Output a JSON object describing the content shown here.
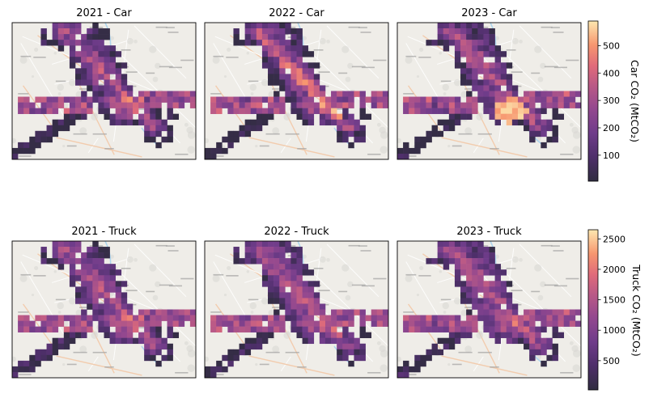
{
  "chart_data": {
    "type": "heatmap",
    "grid": {
      "rows": 1,
      "cols": 3
    },
    "panels": [
      {
        "title": "2021 - Car",
        "mode": "car",
        "year": 2021,
        "variant": 0
      },
      {
        "title": "2022 - Car",
        "mode": "car",
        "year": 2022,
        "variant": 1
      },
      {
        "title": "2023 - Car",
        "mode": "car",
        "year": 2023,
        "variant": 2
      },
      {
        "title": "2021 - Truck",
        "mode": "truck",
        "year": 2021,
        "variant": 0
      },
      {
        "title": "2022 - Truck",
        "mode": "truck",
        "year": 2022,
        "variant": 1
      },
      {
        "title": "2023 - Truck",
        "mode": "truck",
        "year": 2023,
        "variant": 2
      }
    ],
    "colorbars": {
      "car": {
        "label": "Car CO₂ (MtCO₂)",
        "range": [
          5,
          590
        ],
        "ticks": [
          "100",
          "200",
          "300",
          "400",
          "500"
        ],
        "tick_values": [
          100,
          200,
          300,
          400,
          500
        ]
      },
      "truck": {
        "label": "Truck CO₂ (MtCO₂)",
        "range": [
          20,
          2650
        ],
        "ticks": [
          "500",
          "1000",
          "1500",
          "2000",
          "2500"
        ],
        "tick_values": [
          500,
          1000,
          1500,
          2000,
          2500
        ]
      }
    },
    "colormap": "magma",
    "basemap": "street map"
  }
}
